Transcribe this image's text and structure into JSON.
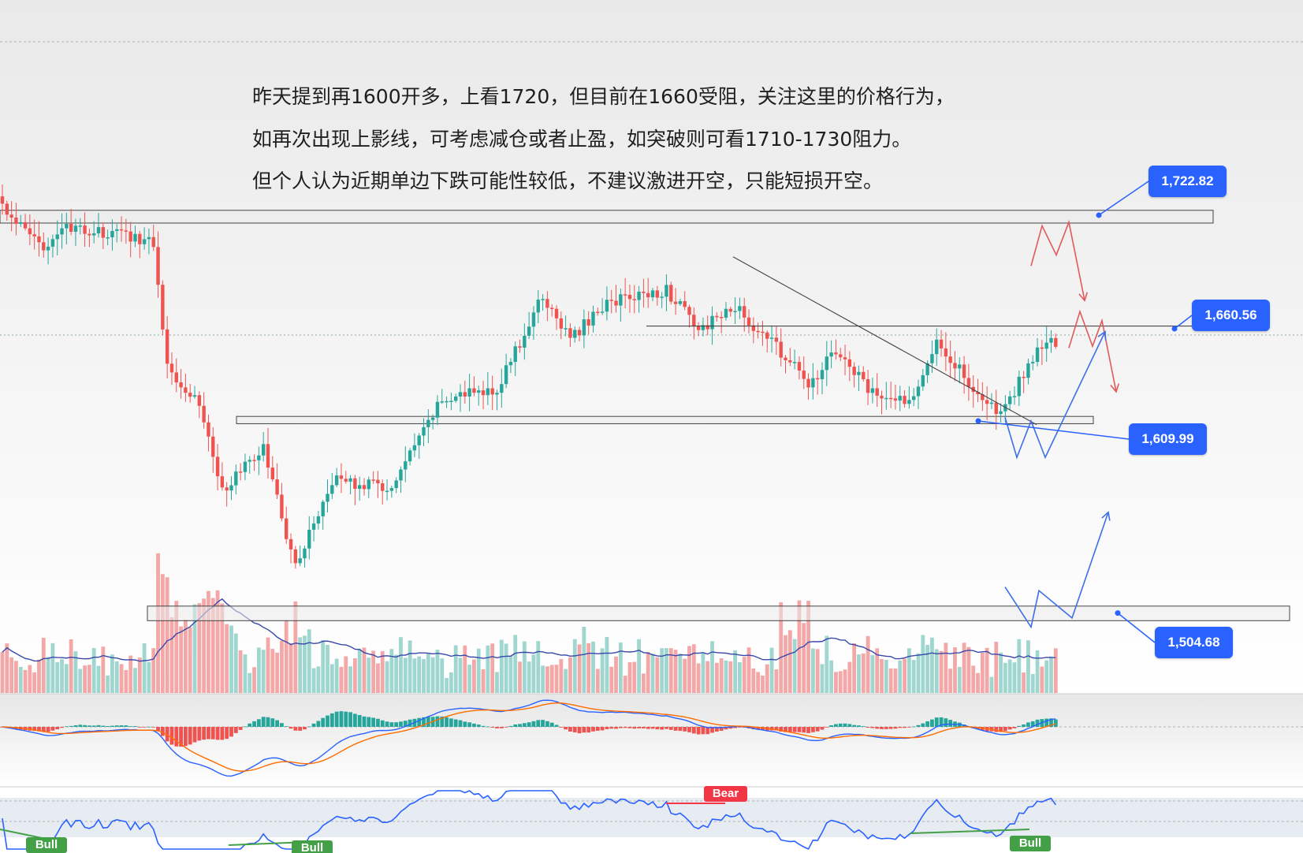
{
  "annotation": {
    "line1": "昨天提到再1600开多，上看1720，但目前在1660受阻，关注这里的价格行为，",
    "line2": "如再次出现上影线，可考虑减仓或者止盈，如突破则可看1710-1730阻力。",
    "line3": "但个人认为近期单边下跌可能性较低，不建议激进开空，只能短损开空。"
  },
  "levels": [
    {
      "label": "1,722.82",
      "price": 1722.82
    },
    {
      "label": "1,660.56",
      "price": 1660.56
    },
    {
      "label": "1,609.99",
      "price": 1609.99
    },
    {
      "label": "1,504.68",
      "price": 1504.68
    }
  ],
  "signals": {
    "bull_1": "Bull",
    "bull_2": "Bull",
    "bull_3": "Bull",
    "bear_1": "Bear"
  },
  "colors": {
    "up": "#26a69a",
    "down": "#ef5350",
    "accent": "#2962ff",
    "macd": "#2962ff",
    "signal": "#ff6d00",
    "rsi": "#2962ff",
    "bull": "#43a047",
    "bear": "#f23645"
  },
  "chart_data": {
    "type": "candlestick",
    "y_range": [
      1490,
      1745
    ],
    "reference_lines": [
      1722.82,
      1660.56,
      1609.99,
      1504.68
    ],
    "key_points": [
      {
        "bar": 0,
        "price": 1728
      },
      {
        "bar": 8,
        "price": 1705
      },
      {
        "bar": 13,
        "price": 1715
      },
      {
        "bar": 27,
        "price": 1712
      },
      {
        "bar": 33,
        "price": 1708
      },
      {
        "bar": 36,
        "price": 1640
      },
      {
        "bar": 43,
        "price": 1620
      },
      {
        "bar": 48,
        "price": 1572
      },
      {
        "bar": 57,
        "price": 1595
      },
      {
        "bar": 64,
        "price": 1530
      },
      {
        "bar": 72,
        "price": 1578
      },
      {
        "bar": 85,
        "price": 1573
      },
      {
        "bar": 96,
        "price": 1622
      },
      {
        "bar": 108,
        "price": 1628
      },
      {
        "bar": 118,
        "price": 1678
      },
      {
        "bar": 124,
        "price": 1655
      },
      {
        "bar": 132,
        "price": 1675
      },
      {
        "bar": 145,
        "price": 1682
      },
      {
        "bar": 152,
        "price": 1660
      },
      {
        "bar": 160,
        "price": 1672
      },
      {
        "bar": 170,
        "price": 1648
      },
      {
        "bar": 176,
        "price": 1630
      },
      {
        "bar": 182,
        "price": 1648
      },
      {
        "bar": 190,
        "price": 1625
      },
      {
        "bar": 198,
        "price": 1620
      },
      {
        "bar": 204,
        "price": 1655
      },
      {
        "bar": 212,
        "price": 1628
      },
      {
        "bar": 218,
        "price": 1612
      },
      {
        "bar": 226,
        "price": 1650
      },
      {
        "bar": 230,
        "price": 1653
      }
    ],
    "projections": [
      {
        "color": "red",
        "points": [
          [
            1308,
            1695
          ],
          [
            1322,
            1717
          ],
          [
            1340,
            1701
          ],
          [
            1356,
            1719
          ],
          [
            1376,
            1676
          ]
        ]
      },
      {
        "color": "red",
        "points": [
          [
            1356,
            1650
          ],
          [
            1370,
            1670
          ],
          [
            1386,
            1651
          ],
          [
            1398,
            1665
          ],
          [
            1416,
            1626
          ]
        ]
      },
      {
        "color": "blue",
        "points": [
          [
            1275,
            1612
          ],
          [
            1290,
            1590
          ],
          [
            1308,
            1610
          ],
          [
            1326,
            1590
          ],
          [
            1402,
            1659
          ]
        ]
      },
      {
        "color": "blue",
        "points": [
          [
            1275,
            1519
          ],
          [
            1308,
            1497
          ],
          [
            1318,
            1517
          ],
          [
            1360,
            1502
          ],
          [
            1406,
            1560
          ]
        ]
      }
    ]
  }
}
